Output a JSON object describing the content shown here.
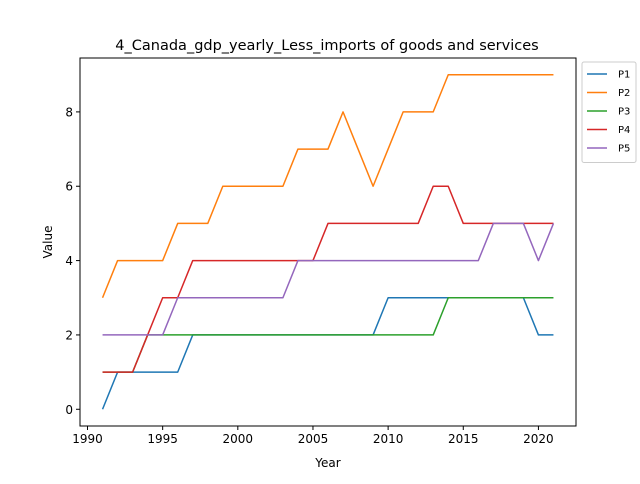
{
  "chart_data": {
    "type": "line",
    "title": "4_Canada_gdp_yearly_Less_imports of goods and services",
    "xlabel": "Year",
    "ylabel": "Value",
    "xlim": [
      1989.5,
      2022.5
    ],
    "ylim": [
      -0.45,
      9.45
    ],
    "xticks": [
      1990,
      1995,
      2000,
      2005,
      2010,
      2015,
      2020
    ],
    "yticks": [
      0,
      2,
      4,
      6,
      8
    ],
    "grid": false,
    "legend_position": "outside-top-right",
    "x": [
      1991,
      1992,
      1993,
      1994,
      1995,
      1996,
      1997,
      1998,
      1999,
      2000,
      2001,
      2002,
      2003,
      2004,
      2005,
      2006,
      2007,
      2008,
      2009,
      2010,
      2011,
      2012,
      2013,
      2014,
      2015,
      2016,
      2017,
      2018,
      2019,
      2020,
      2021
    ],
    "series": [
      {
        "name": "P1",
        "color": "#1f77b4",
        "values": [
          0,
          1,
          1,
          1,
          1,
          1,
          2,
          2,
          2,
          2,
          2,
          2,
          2,
          2,
          2,
          2,
          2,
          2,
          2,
          3,
          3,
          3,
          3,
          3,
          3,
          3,
          3,
          3,
          3,
          2,
          2
        ]
      },
      {
        "name": "P2",
        "color": "#ff7f0e",
        "values": [
          3,
          4,
          4,
          4,
          4,
          5,
          5,
          5,
          6,
          6,
          6,
          6,
          6,
          7,
          7,
          7,
          8,
          7,
          6,
          7,
          8,
          8,
          8,
          9,
          9,
          9,
          9,
          9,
          9,
          9,
          9
        ]
      },
      {
        "name": "P3",
        "color": "#2ca02c",
        "values": [
          1,
          1,
          1,
          2,
          2,
          2,
          2,
          2,
          2,
          2,
          2,
          2,
          2,
          2,
          2,
          2,
          2,
          2,
          2,
          2,
          2,
          2,
          2,
          3,
          3,
          3,
          3,
          3,
          3,
          3,
          3
        ]
      },
      {
        "name": "P4",
        "color": "#d62728",
        "values": [
          1,
          1,
          1,
          2,
          3,
          3,
          4,
          4,
          4,
          4,
          4,
          4,
          4,
          4,
          4,
          5,
          5,
          5,
          5,
          5,
          5,
          5,
          6,
          6,
          5,
          5,
          5,
          5,
          5,
          5,
          5
        ]
      },
      {
        "name": "P5",
        "color": "#9467bd",
        "values": [
          2,
          2,
          2,
          2,
          2,
          3,
          3,
          3,
          3,
          3,
          3,
          3,
          3,
          4,
          4,
          4,
          4,
          4,
          4,
          4,
          4,
          4,
          4,
          4,
          4,
          4,
          5,
          5,
          5,
          4,
          5
        ]
      }
    ]
  }
}
